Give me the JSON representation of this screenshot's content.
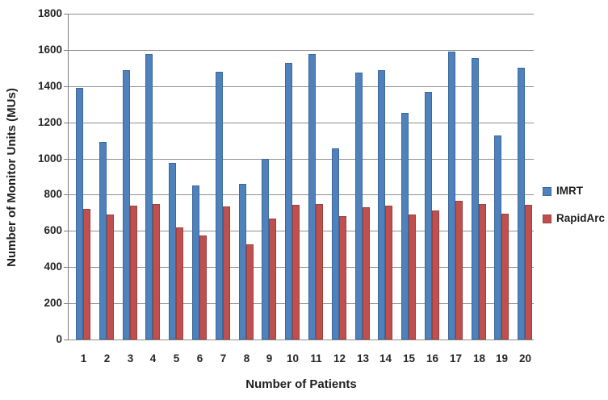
{
  "chart_data": {
    "type": "bar",
    "title": "",
    "xlabel": "Number of Patients",
    "ylabel": "Number of Monitor Units (MUs)",
    "categories": [
      "1",
      "2",
      "3",
      "4",
      "5",
      "6",
      "7",
      "8",
      "9",
      "10",
      "11",
      "12",
      "13",
      "14",
      "15",
      "16",
      "17",
      "18",
      "19",
      "20"
    ],
    "series": [
      {
        "name": "IMRT",
        "color": "#4f81bd",
        "border_color": "#3c6899",
        "values": [
          1390,
          1090,
          1490,
          1575,
          975,
          850,
          1480,
          860,
          1000,
          1530,
          1575,
          1055,
          1475,
          1490,
          1250,
          1370,
          1590,
          1555,
          1125,
          1500
        ]
      },
      {
        "name": "RapidArc",
        "color": "#c0504d",
        "border_color": "#9a403e",
        "values": [
          720,
          690,
          740,
          750,
          620,
          575,
          735,
          525,
          670,
          745,
          750,
          680,
          730,
          740,
          690,
          715,
          765,
          750,
          695,
          745
        ]
      }
    ],
    "ylim": [
      0,
      1800
    ],
    "yticks": [
      0,
      200,
      400,
      600,
      800,
      1000,
      1200,
      1400,
      1600,
      1800
    ],
    "grid": true,
    "legend_position": "right"
  }
}
